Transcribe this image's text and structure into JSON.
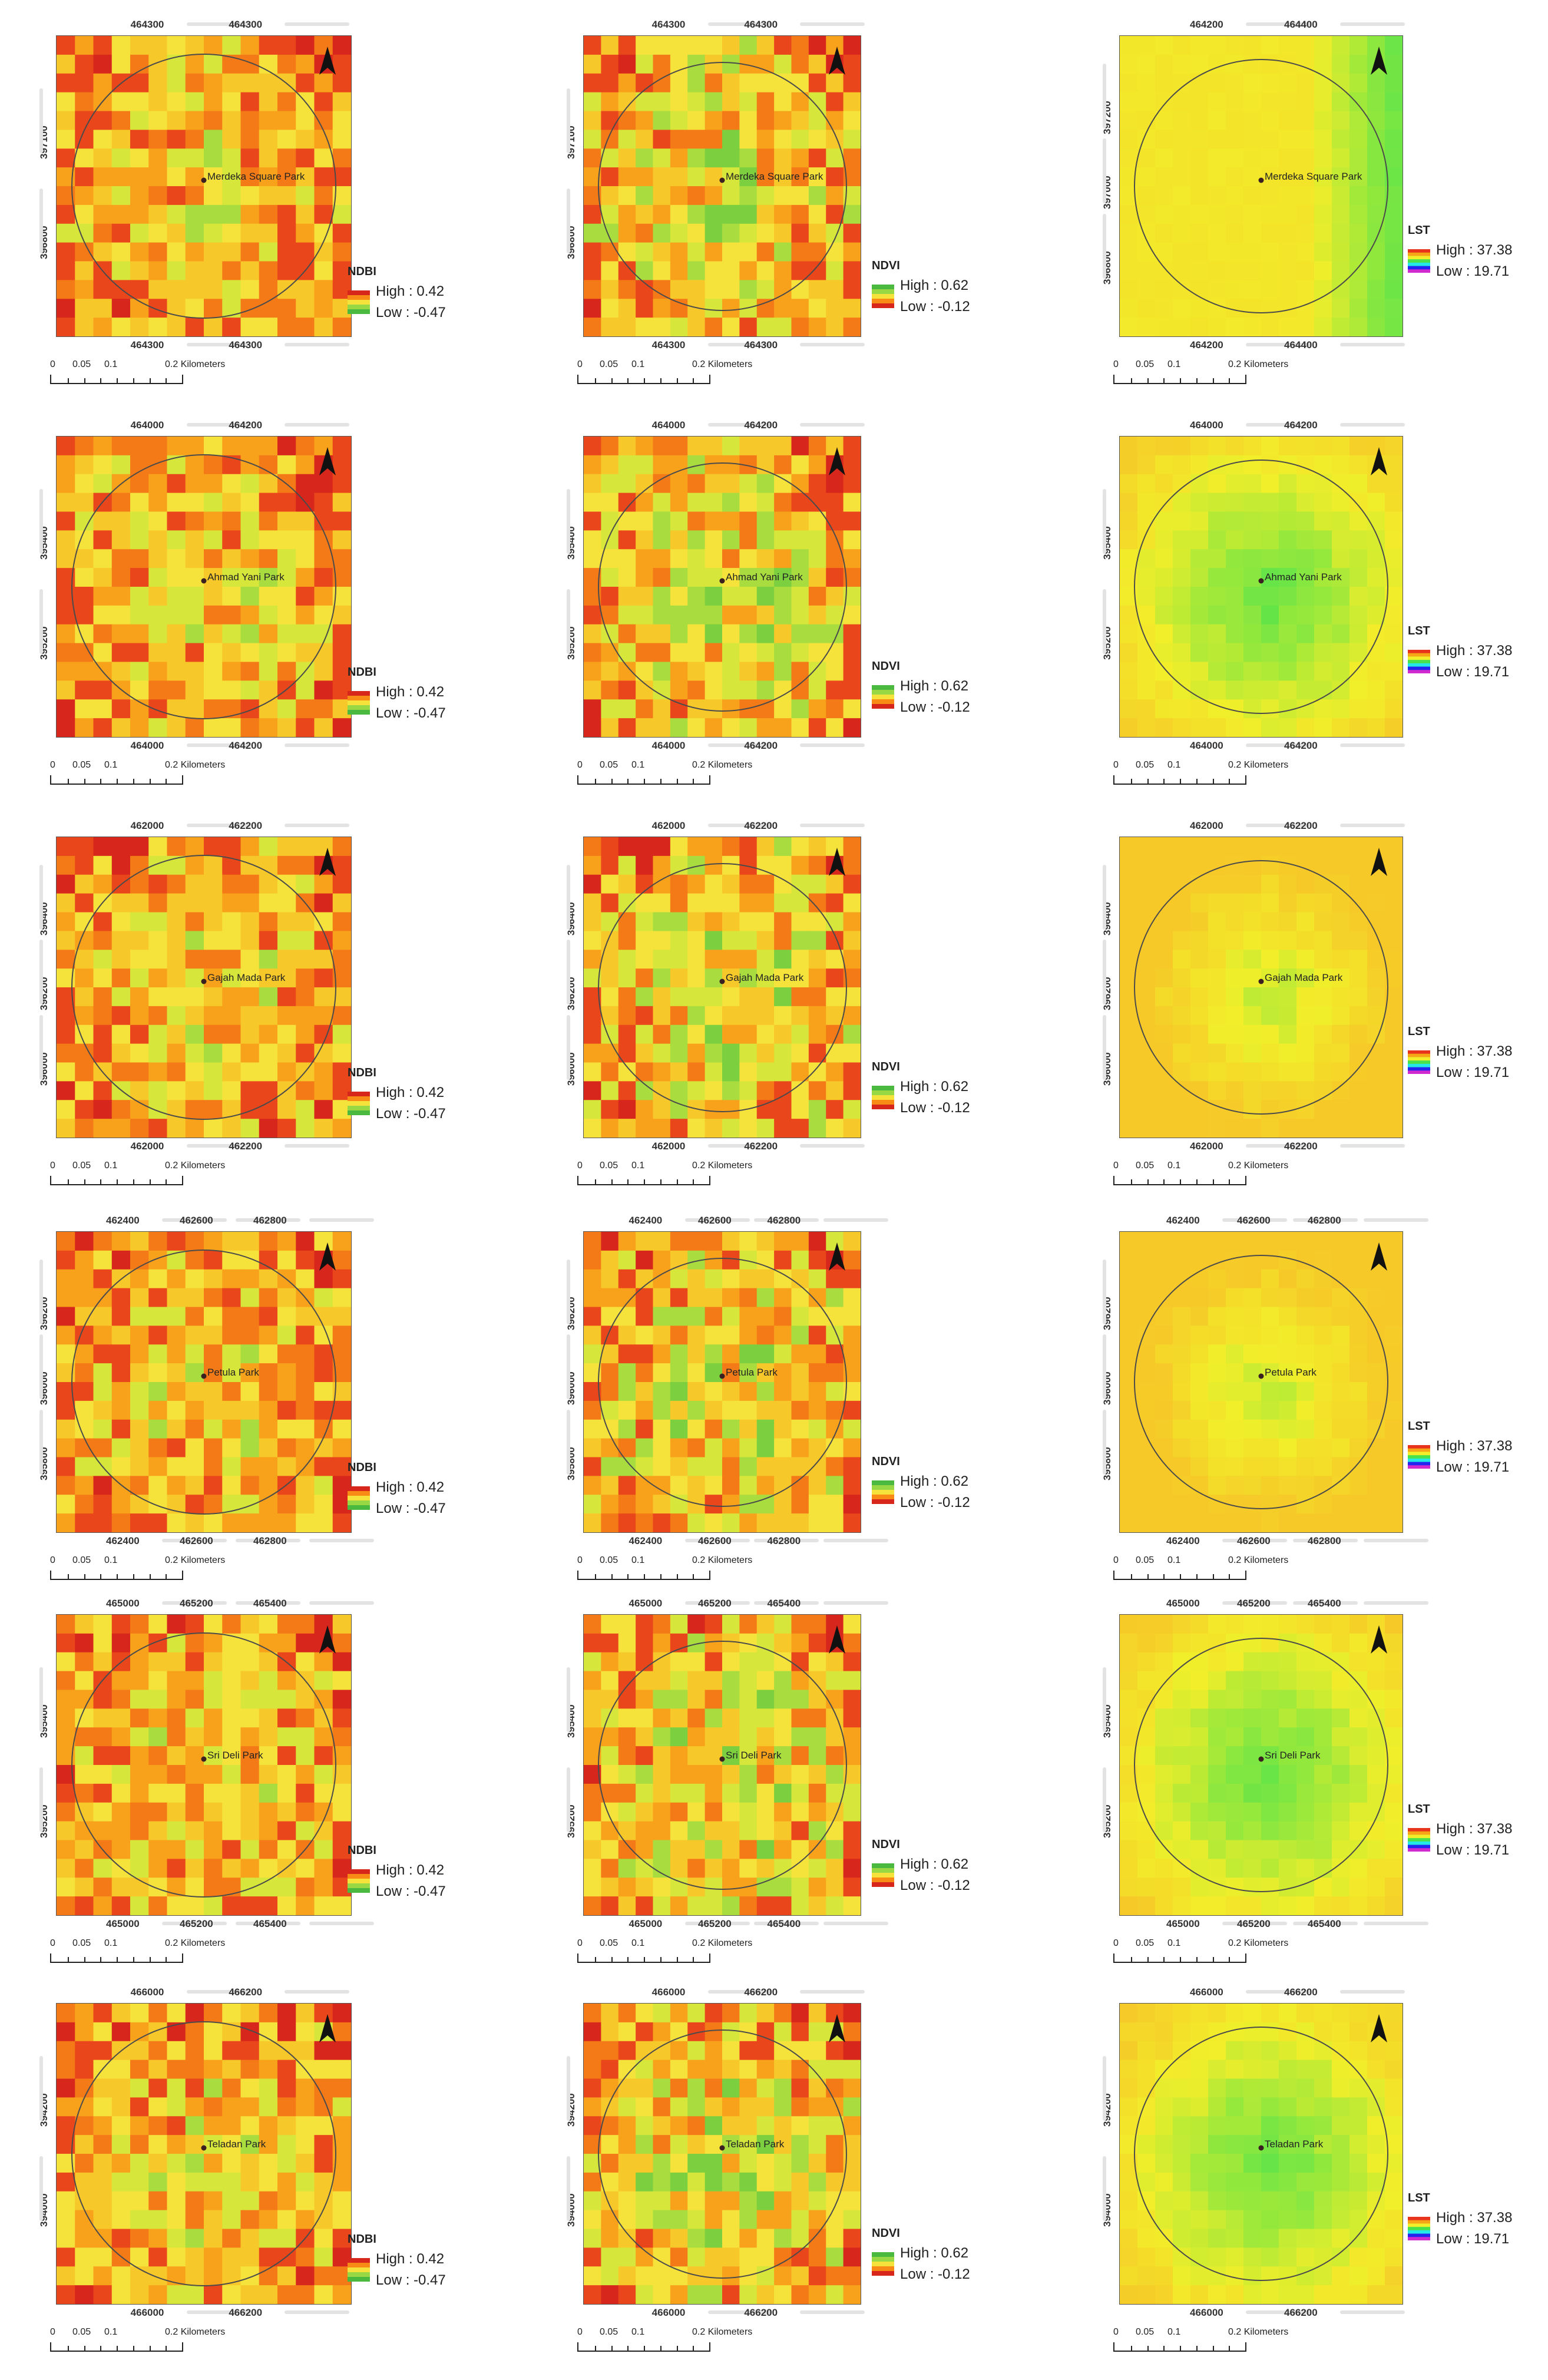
{
  "legends": {
    "ndbi": {
      "title": "NDBI",
      "high": "High : 0.42",
      "low": "Low : -0.47",
      "colors": [
        "#d7261b",
        "#f88a16",
        "#f5e33c",
        "#98d845",
        "#4bb840"
      ]
    },
    "ndvi": {
      "title": "NDVI",
      "high": "High : 0.62",
      "low": "Low : -0.12",
      "colors": [
        "#4bb840",
        "#98d845",
        "#f5e33c",
        "#f88a16",
        "#d7261b"
      ]
    },
    "lst": {
      "title": "LST",
      "high": "High : 37.38",
      "low": "Low : 19.71",
      "colors": [
        "#e8341c",
        "#f5a516",
        "#f2ee2a",
        "#4ae24a",
        "#24e7e7",
        "#2525f0",
        "#d12ad1"
      ]
    }
  },
  "scale": {
    "labels": [
      "0",
      "0.05",
      "0.1",
      "0.2 Kilometers"
    ]
  },
  "rows": [
    {
      "park": "Merdeka Square Park",
      "x_ticks": [
        "464300",
        "464300",
        "464300",
        "464300"
      ],
      "lst_x_ticks": [
        "464200",
        "464400",
        "464200",
        "464400"
      ],
      "y_ticks": [
        "397100",
        "396800"
      ],
      "lst_y_ticks": [
        "397200",
        "397000",
        "396800"
      ]
    },
    {
      "park": "Ahmad Yani Park",
      "x_ticks": [
        "464000",
        "464200",
        "464000",
        "464200"
      ],
      "lst_x_ticks": [
        "464000",
        "464200",
        "464000",
        "464200"
      ],
      "y_ticks": [
        "395400",
        "395200"
      ],
      "lst_y_ticks": [
        "395400",
        "395200"
      ]
    },
    {
      "park": "Gajah Mada Park",
      "x_ticks": [
        "462000",
        "462200",
        "462000",
        "462200"
      ],
      "lst_x_ticks": [
        "462000",
        "462200",
        "462000",
        "462200"
      ],
      "y_ticks": [
        "396400",
        "396200",
        "396000"
      ],
      "lst_y_ticks": [
        "396400",
        "396200",
        "396000"
      ]
    },
    {
      "park": "Petula Park",
      "x_ticks": [
        "462400",
        "462600",
        "462800",
        "462400",
        "462600",
        "462800"
      ],
      "lst_x_ticks": [
        "462400",
        "462600",
        "462800",
        "462400",
        "462600",
        "462800"
      ],
      "y_ticks": [
        "396200",
        "396000",
        "395800"
      ],
      "lst_y_ticks": [
        "396200",
        "396000",
        "395800"
      ]
    },
    {
      "park": "Sri Deli Park",
      "x_ticks": [
        "465000",
        "465200",
        "465400",
        "465000",
        "465200",
        "465400"
      ],
      "lst_x_ticks": [
        "465000",
        "465200",
        "465400",
        "465000",
        "465200",
        "465400"
      ],
      "y_ticks": [
        "395400",
        "395200"
      ],
      "lst_y_ticks": [
        "395400",
        "395200"
      ]
    },
    {
      "park": "Teladan Park",
      "x_ticks": [
        "466000",
        "466200",
        "466000",
        "466200"
      ],
      "lst_x_ticks": [
        "466000",
        "466200",
        "466000",
        "466200"
      ],
      "y_ticks": [
        "394200",
        "394000"
      ],
      "lst_y_ticks": [
        "394200",
        "394000"
      ]
    }
  ]
}
